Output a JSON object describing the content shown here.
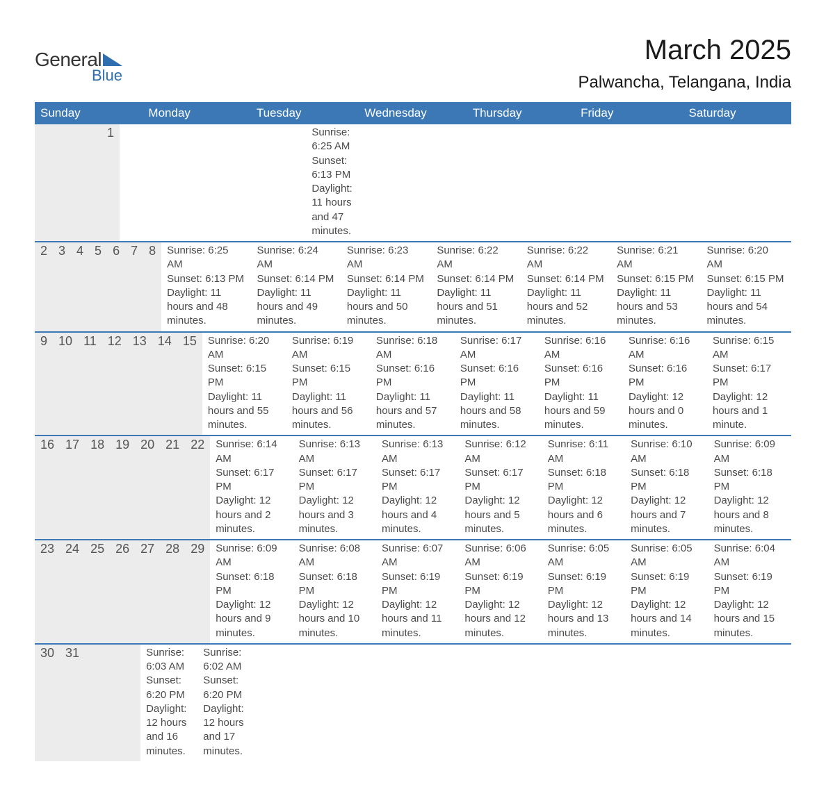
{
  "logo": {
    "general": "General",
    "blue": "Blue",
    "triangle_color": "#2f6fad"
  },
  "title": "March 2025",
  "location": "Palwancha, Telangana, India",
  "colors": {
    "header_bg": "#3b78b5",
    "header_text": "#ffffff",
    "daynum_bg": "#ececec",
    "daynum_text": "#555555",
    "body_text": "#4a4a4a",
    "divider": "#3b78b5"
  },
  "day_headers": [
    "Sunday",
    "Monday",
    "Tuesday",
    "Wednesday",
    "Thursday",
    "Friday",
    "Saturday"
  ],
  "weeks": [
    [
      {
        "n": "",
        "sunrise": "",
        "sunset": "",
        "daylight": ""
      },
      {
        "n": "",
        "sunrise": "",
        "sunset": "",
        "daylight": ""
      },
      {
        "n": "",
        "sunrise": "",
        "sunset": "",
        "daylight": ""
      },
      {
        "n": "",
        "sunrise": "",
        "sunset": "",
        "daylight": ""
      },
      {
        "n": "",
        "sunrise": "",
        "sunset": "",
        "daylight": ""
      },
      {
        "n": "",
        "sunrise": "",
        "sunset": "",
        "daylight": ""
      },
      {
        "n": "1",
        "sunrise": "Sunrise: 6:25 AM",
        "sunset": "Sunset: 6:13 PM",
        "daylight": "Daylight: 11 hours and 47 minutes."
      }
    ],
    [
      {
        "n": "2",
        "sunrise": "Sunrise: 6:25 AM",
        "sunset": "Sunset: 6:13 PM",
        "daylight": "Daylight: 11 hours and 48 minutes."
      },
      {
        "n": "3",
        "sunrise": "Sunrise: 6:24 AM",
        "sunset": "Sunset: 6:14 PM",
        "daylight": "Daylight: 11 hours and 49 minutes."
      },
      {
        "n": "4",
        "sunrise": "Sunrise: 6:23 AM",
        "sunset": "Sunset: 6:14 PM",
        "daylight": "Daylight: 11 hours and 50 minutes."
      },
      {
        "n": "5",
        "sunrise": "Sunrise: 6:22 AM",
        "sunset": "Sunset: 6:14 PM",
        "daylight": "Daylight: 11 hours and 51 minutes."
      },
      {
        "n": "6",
        "sunrise": "Sunrise: 6:22 AM",
        "sunset": "Sunset: 6:14 PM",
        "daylight": "Daylight: 11 hours and 52 minutes."
      },
      {
        "n": "7",
        "sunrise": "Sunrise: 6:21 AM",
        "sunset": "Sunset: 6:15 PM",
        "daylight": "Daylight: 11 hours and 53 minutes."
      },
      {
        "n": "8",
        "sunrise": "Sunrise: 6:20 AM",
        "sunset": "Sunset: 6:15 PM",
        "daylight": "Daylight: 11 hours and 54 minutes."
      }
    ],
    [
      {
        "n": "9",
        "sunrise": "Sunrise: 6:20 AM",
        "sunset": "Sunset: 6:15 PM",
        "daylight": "Daylight: 11 hours and 55 minutes."
      },
      {
        "n": "10",
        "sunrise": "Sunrise: 6:19 AM",
        "sunset": "Sunset: 6:15 PM",
        "daylight": "Daylight: 11 hours and 56 minutes."
      },
      {
        "n": "11",
        "sunrise": "Sunrise: 6:18 AM",
        "sunset": "Sunset: 6:16 PM",
        "daylight": "Daylight: 11 hours and 57 minutes."
      },
      {
        "n": "12",
        "sunrise": "Sunrise: 6:17 AM",
        "sunset": "Sunset: 6:16 PM",
        "daylight": "Daylight: 11 hours and 58 minutes."
      },
      {
        "n": "13",
        "sunrise": "Sunrise: 6:16 AM",
        "sunset": "Sunset: 6:16 PM",
        "daylight": "Daylight: 11 hours and 59 minutes."
      },
      {
        "n": "14",
        "sunrise": "Sunrise: 6:16 AM",
        "sunset": "Sunset: 6:16 PM",
        "daylight": "Daylight: 12 hours and 0 minutes."
      },
      {
        "n": "15",
        "sunrise": "Sunrise: 6:15 AM",
        "sunset": "Sunset: 6:17 PM",
        "daylight": "Daylight: 12 hours and 1 minute."
      }
    ],
    [
      {
        "n": "16",
        "sunrise": "Sunrise: 6:14 AM",
        "sunset": "Sunset: 6:17 PM",
        "daylight": "Daylight: 12 hours and 2 minutes."
      },
      {
        "n": "17",
        "sunrise": "Sunrise: 6:13 AM",
        "sunset": "Sunset: 6:17 PM",
        "daylight": "Daylight: 12 hours and 3 minutes."
      },
      {
        "n": "18",
        "sunrise": "Sunrise: 6:13 AM",
        "sunset": "Sunset: 6:17 PM",
        "daylight": "Daylight: 12 hours and 4 minutes."
      },
      {
        "n": "19",
        "sunrise": "Sunrise: 6:12 AM",
        "sunset": "Sunset: 6:17 PM",
        "daylight": "Daylight: 12 hours and 5 minutes."
      },
      {
        "n": "20",
        "sunrise": "Sunrise: 6:11 AM",
        "sunset": "Sunset: 6:18 PM",
        "daylight": "Daylight: 12 hours and 6 minutes."
      },
      {
        "n": "21",
        "sunrise": "Sunrise: 6:10 AM",
        "sunset": "Sunset: 6:18 PM",
        "daylight": "Daylight: 12 hours and 7 minutes."
      },
      {
        "n": "22",
        "sunrise": "Sunrise: 6:09 AM",
        "sunset": "Sunset: 6:18 PM",
        "daylight": "Daylight: 12 hours and 8 minutes."
      }
    ],
    [
      {
        "n": "23",
        "sunrise": "Sunrise: 6:09 AM",
        "sunset": "Sunset: 6:18 PM",
        "daylight": "Daylight: 12 hours and 9 minutes."
      },
      {
        "n": "24",
        "sunrise": "Sunrise: 6:08 AM",
        "sunset": "Sunset: 6:18 PM",
        "daylight": "Daylight: 12 hours and 10 minutes."
      },
      {
        "n": "25",
        "sunrise": "Sunrise: 6:07 AM",
        "sunset": "Sunset: 6:19 PM",
        "daylight": "Daylight: 12 hours and 11 minutes."
      },
      {
        "n": "26",
        "sunrise": "Sunrise: 6:06 AM",
        "sunset": "Sunset: 6:19 PM",
        "daylight": "Daylight: 12 hours and 12 minutes."
      },
      {
        "n": "27",
        "sunrise": "Sunrise: 6:05 AM",
        "sunset": "Sunset: 6:19 PM",
        "daylight": "Daylight: 12 hours and 13 minutes."
      },
      {
        "n": "28",
        "sunrise": "Sunrise: 6:05 AM",
        "sunset": "Sunset: 6:19 PM",
        "daylight": "Daylight: 12 hours and 14 minutes."
      },
      {
        "n": "29",
        "sunrise": "Sunrise: 6:04 AM",
        "sunset": "Sunset: 6:19 PM",
        "daylight": "Daylight: 12 hours and 15 minutes."
      }
    ],
    [
      {
        "n": "30",
        "sunrise": "Sunrise: 6:03 AM",
        "sunset": "Sunset: 6:20 PM",
        "daylight": "Daylight: 12 hours and 16 minutes."
      },
      {
        "n": "31",
        "sunrise": "Sunrise: 6:02 AM",
        "sunset": "Sunset: 6:20 PM",
        "daylight": "Daylight: 12 hours and 17 minutes."
      },
      {
        "n": "",
        "sunrise": "",
        "sunset": "",
        "daylight": ""
      },
      {
        "n": "",
        "sunrise": "",
        "sunset": "",
        "daylight": ""
      },
      {
        "n": "",
        "sunrise": "",
        "sunset": "",
        "daylight": ""
      },
      {
        "n": "",
        "sunrise": "",
        "sunset": "",
        "daylight": ""
      },
      {
        "n": "",
        "sunrise": "",
        "sunset": "",
        "daylight": ""
      }
    ]
  ]
}
